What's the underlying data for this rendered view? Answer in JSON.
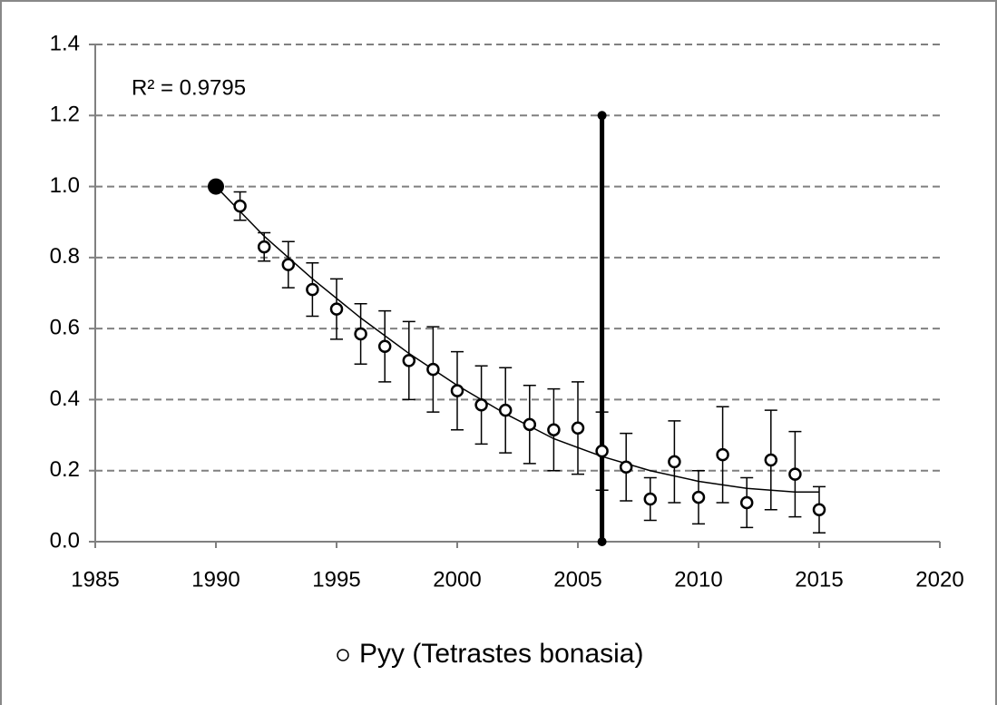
{
  "chart_data": {
    "type": "scatter",
    "annotation": "R² = 0.9795",
    "xlim": [
      1985,
      2020
    ],
    "xticks": [
      1985,
      1990,
      1995,
      2000,
      2005,
      2010,
      2015,
      2020
    ],
    "ylim": [
      0,
      1.4
    ],
    "yticks": [
      {
        "value": 0,
        "label": "0.0"
      },
      {
        "value": 0.2,
        "label": "0.2"
      },
      {
        "value": 0.4,
        "label": "0.4"
      },
      {
        "value": 0.6,
        "label": "0.6"
      },
      {
        "value": 0.8,
        "label": "0.8"
      },
      {
        "value": 1.0,
        "label": "1.0"
      },
      {
        "value": 1.2,
        "label": "1.2"
      },
      {
        "value": 1.4,
        "label": "1.4"
      }
    ],
    "grid": true,
    "highlight": {
      "x": 1990,
      "value": 1.0,
      "color": "#000000"
    },
    "series": [
      {
        "name": "Pyy (Tetrastes bonasia)",
        "color": "#000000",
        "x": [
          1991,
          1992,
          1993,
          1994,
          1995,
          1996,
          1997,
          1998,
          1999,
          2000,
          2001,
          2002,
          2003,
          2004,
          2005,
          2006,
          2007,
          2008,
          2009,
          2010,
          2011,
          2012,
          2013,
          2014,
          2015
        ],
        "values": [
          0.945,
          0.83,
          0.78,
          0.71,
          0.655,
          0.585,
          0.55,
          0.51,
          0.485,
          0.425,
          0.385,
          0.37,
          0.33,
          0.315,
          0.32,
          0.255,
          0.21,
          0.12,
          0.225,
          0.125,
          0.245,
          0.11,
          0.23,
          0.19,
          0.09
        ],
        "errors": [
          0.04,
          0.04,
          0.065,
          0.075,
          0.085,
          0.085,
          0.1,
          0.11,
          0.12,
          0.11,
          0.11,
          0.12,
          0.11,
          0.115,
          0.13,
          0.11,
          0.095,
          0.06,
          0.115,
          0.075,
          0.135,
          0.07,
          0.14,
          0.12,
          0.065
        ]
      }
    ],
    "trendline": {
      "color": "#000000",
      "x": [
        1990,
        1992,
        1994,
        1996,
        1998,
        2000,
        2002,
        2004,
        2006,
        2008,
        2010,
        2012,
        2014,
        2015
      ],
      "values": [
        1.0,
        0.86,
        0.74,
        0.63,
        0.53,
        0.44,
        0.36,
        0.29,
        0.24,
        0.2,
        0.17,
        0.15,
        0.14,
        0.14
      ]
    },
    "vline": {
      "x": 2006,
      "y": [
        0,
        1.2
      ],
      "color": "#000000"
    }
  }
}
